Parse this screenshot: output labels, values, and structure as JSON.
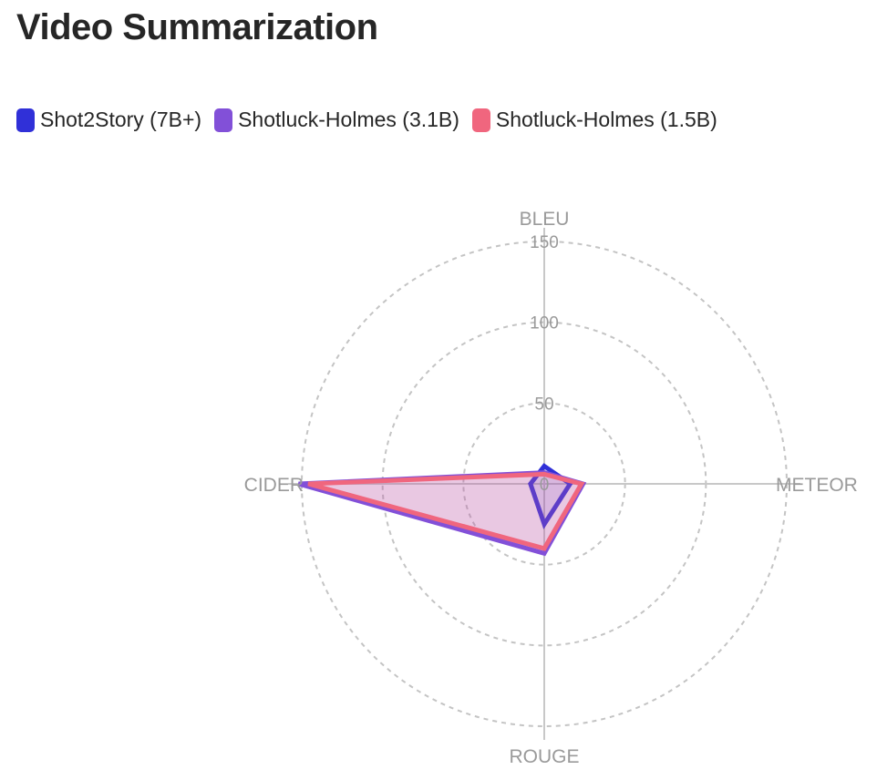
{
  "title": "Video Summarization",
  "colors": {
    "grid": "#c4c4c4",
    "axis": "#c8c8c8",
    "label": "#9a9a9a"
  },
  "chart_data": {
    "type": "radar",
    "title": "Video Summarization",
    "axes": [
      "BLEU",
      "METEOR",
      "ROUGE",
      "CIDER"
    ],
    "radial_range": [
      0,
      150
    ],
    "radial_ticks": [
      "0",
      "50",
      "100",
      "150"
    ],
    "grid": "dashed circles",
    "legend_position": "top-left",
    "series": [
      {
        "name": "Shot2Story (7B+)",
        "color": "#3030d8",
        "values": [
          11,
          16,
          25,
          8.5
        ]
      },
      {
        "name": "Shotluck-Holmes (3.1B)",
        "color": "#8250d8",
        "values": [
          7,
          24,
          43,
          152
        ]
      },
      {
        "name": "Shotluck-Holmes (1.5B)",
        "color": "#f0667e",
        "values": [
          6,
          23,
          40,
          146
        ]
      }
    ]
  }
}
